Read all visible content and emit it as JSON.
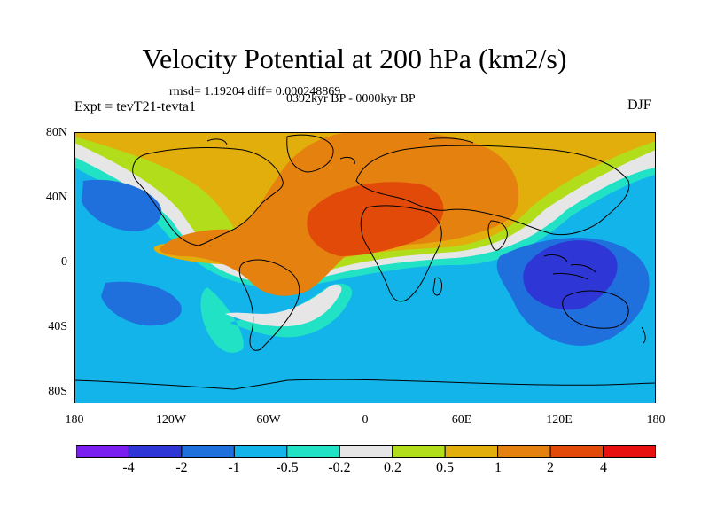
{
  "title": "Velocity Potential at 200 hPa (km2/s)",
  "stats": "rmsd= 1.19204 diff= 0.000248869",
  "experiment": "Expt = tevT21-tevta1",
  "period": "0392kyr BP - 0000kyr BP",
  "season": "DJF",
  "lat_labels": [
    "80N",
    "40N",
    "0",
    "40S",
    "80S"
  ],
  "lon_labels": [
    "180",
    "120W",
    "60W",
    "0",
    "60E",
    "120E",
    "180"
  ],
  "colorbar": {
    "labels": [
      "-4",
      "-2",
      "-1",
      "-0.5",
      "-0.2",
      "0.2",
      "0.5",
      "1",
      "2",
      "4"
    ],
    "colors": [
      "#7a1ff0",
      "#2e36d6",
      "#1f6fdc",
      "#12b4ea",
      "#22e2c6",
      "#e6e6e6",
      "#b2dd1b",
      "#e2ae0c",
      "#e5810f",
      "#e24a0a",
      "#e80f0f"
    ]
  }
}
